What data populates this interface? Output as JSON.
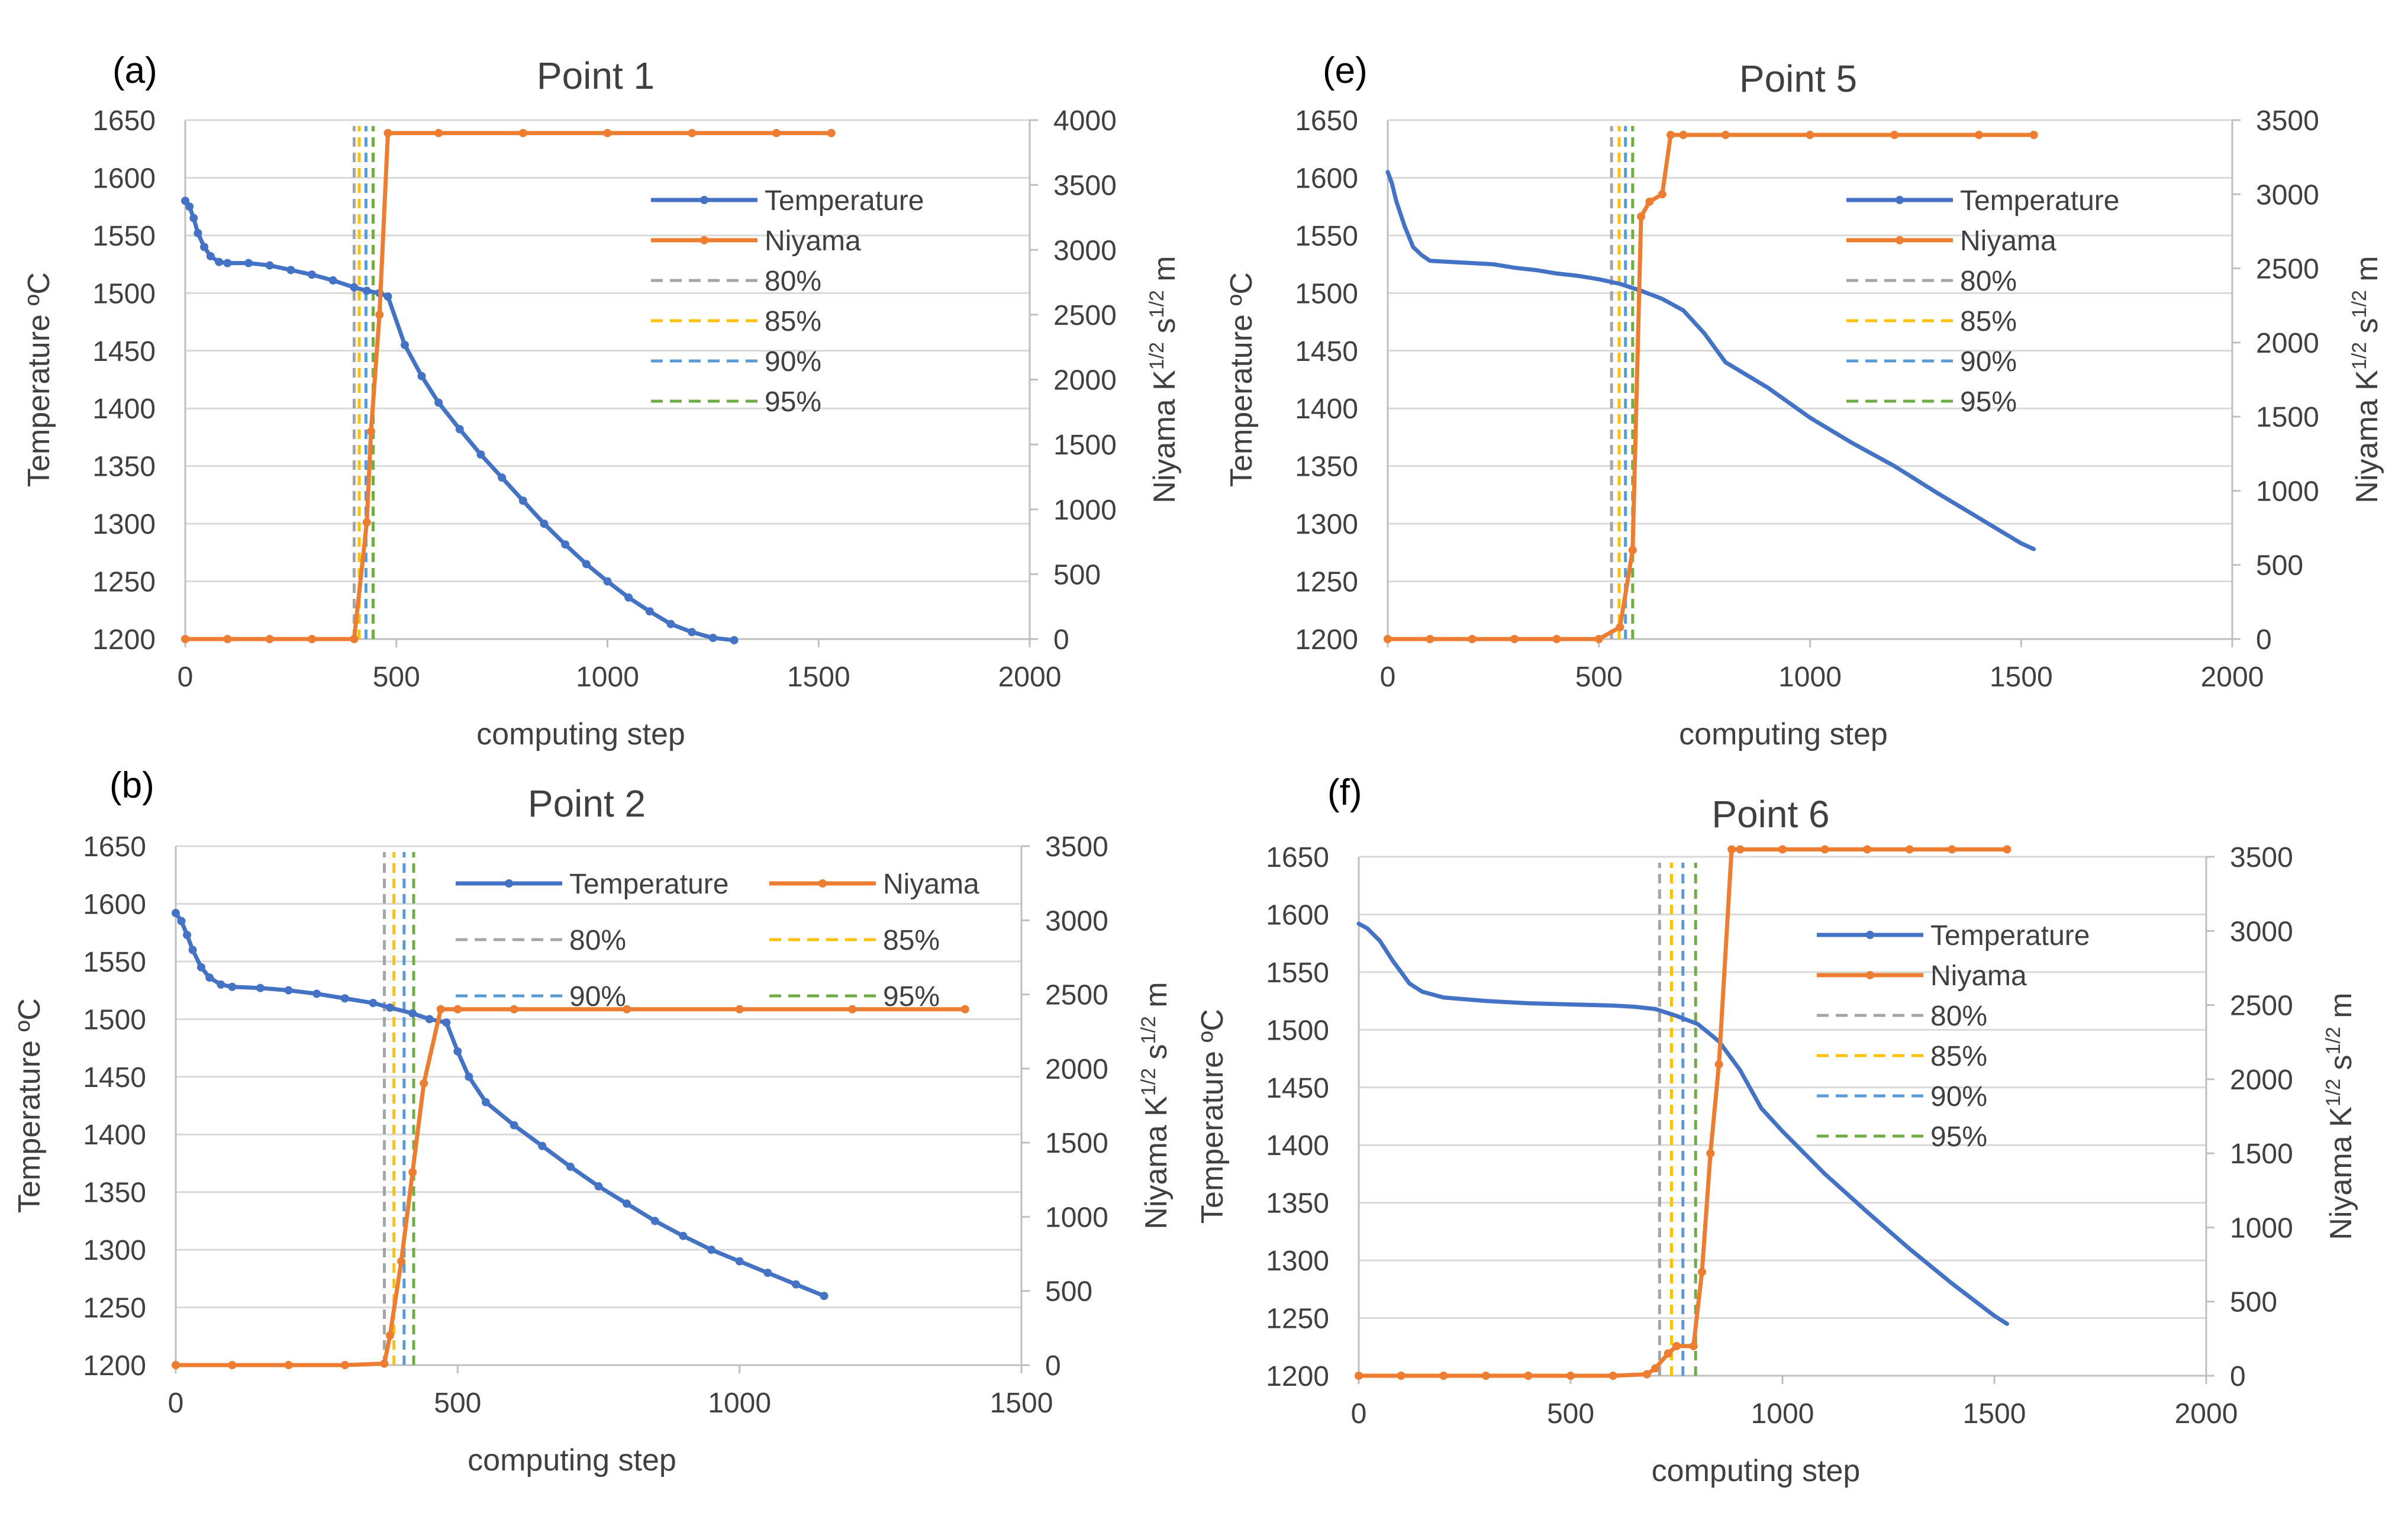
{
  "colors": {
    "temperature": "#4472C4",
    "niyama": "#ED7D31",
    "p80": "#A5A5A5",
    "p85": "#FFC000",
    "p90": "#5B9BD5",
    "p95": "#70AD47",
    "grid": "#D9D9D9",
    "axis": "#BFBFBF",
    "text": "#404040"
  },
  "chart_data": [
    {
      "panel_label": "(a)",
      "type": "line",
      "title": "Point 1",
      "xlabel": "computing step",
      "ylabel": "Temperature ºC",
      "y2label_main": "Niyama K",
      "y2label_sup1": "1/2",
      "y2label_mid": " s",
      "y2label_sup2": "1/2",
      "y2label_end": " m",
      "xlim": [
        0,
        2000
      ],
      "xticks": [
        0,
        500,
        1000,
        1500,
        2000
      ],
      "ylim": [
        1200,
        1650
      ],
      "yticks": [
        1200,
        1250,
        1300,
        1350,
        1400,
        1450,
        1500,
        1550,
        1600,
        1650
      ],
      "y2lim": [
        0,
        4000
      ],
      "y2ticks": [
        0,
        500,
        1000,
        1500,
        2000,
        2500,
        3000,
        3500,
        4000
      ],
      "legend_layout": "column",
      "legend": [
        "Temperature",
        "Niyama",
        "80%",
        "85%",
        "90%",
        "95%"
      ],
      "series": [
        {
          "name": "Temperature",
          "axis": "left",
          "markers": true,
          "x": [
            0,
            10,
            20,
            30,
            45,
            60,
            80,
            100,
            150,
            200,
            250,
            300,
            350,
            400,
            430,
            460,
            480,
            520,
            560,
            600,
            650,
            700,
            750,
            800,
            850,
            900,
            950,
            1000,
            1050,
            1100,
            1150,
            1200,
            1250,
            1300
          ],
          "y": [
            1580,
            1575,
            1565,
            1552,
            1540,
            1532,
            1527,
            1526,
            1526,
            1524,
            1520,
            1516,
            1511,
            1505,
            1502,
            1500,
            1497,
            1455,
            1428,
            1405,
            1382,
            1360,
            1340,
            1320,
            1300,
            1282,
            1265,
            1250,
            1236,
            1224,
            1213,
            1206,
            1201,
            1199
          ]
        },
        {
          "name": "Niyama",
          "axis": "right",
          "markers": true,
          "x": [
            0,
            100,
            200,
            300,
            400,
            430,
            440,
            460,
            480,
            600,
            800,
            1000,
            1200,
            1400,
            1530
          ],
          "y": [
            0,
            0,
            0,
            0,
            0,
            900,
            1600,
            2500,
            3900,
            3900,
            3900,
            3900,
            3900,
            3900,
            3900
          ]
        }
      ],
      "thresholds": [
        {
          "name": "80%",
          "x": 400
        },
        {
          "name": "85%",
          "x": 412
        },
        {
          "name": "90%",
          "x": 428
        },
        {
          "name": "95%",
          "x": 445
        }
      ]
    },
    {
      "panel_label": "(e)",
      "type": "line",
      "title": "Point 5",
      "xlabel": "computing step",
      "ylabel": "Temperature ºC",
      "y2label_main": "Niyama K",
      "y2label_sup1": "1/2",
      "y2label_mid": " s",
      "y2label_sup2": "1/2",
      "y2label_end": " m",
      "xlim": [
        0,
        2000
      ],
      "xticks": [
        0,
        500,
        1000,
        1500,
        2000
      ],
      "ylim": [
        1200,
        1650
      ],
      "yticks": [
        1200,
        1250,
        1300,
        1350,
        1400,
        1450,
        1500,
        1550,
        1600,
        1650
      ],
      "y2lim": [
        0,
        3500
      ],
      "y2ticks": [
        0,
        500,
        1000,
        1500,
        2000,
        2500,
        3000,
        3500
      ],
      "legend_layout": "column",
      "legend": [
        "Temperature",
        "Niyama",
        "80%",
        "85%",
        "90%",
        "95%"
      ],
      "series": [
        {
          "name": "Temperature",
          "axis": "left",
          "markers": false,
          "x": [
            0,
            10,
            20,
            40,
            60,
            80,
            100,
            150,
            200,
            250,
            300,
            350,
            400,
            450,
            500,
            550,
            600,
            650,
            700,
            750,
            800,
            900,
            1000,
            1100,
            1200,
            1300,
            1400,
            1500,
            1530
          ],
          "y": [
            1605,
            1595,
            1580,
            1558,
            1540,
            1533,
            1528,
            1527,
            1526,
            1525,
            1522,
            1520,
            1517,
            1515,
            1512,
            1508,
            1502,
            1495,
            1485,
            1465,
            1440,
            1418,
            1392,
            1370,
            1350,
            1327,
            1305,
            1283,
            1278
          ]
        },
        {
          "name": "Niyama",
          "axis": "right",
          "markers": true,
          "x": [
            0,
            100,
            200,
            300,
            400,
            500,
            550,
            580,
            600,
            620,
            650,
            670,
            700,
            800,
            1000,
            1200,
            1400,
            1530
          ],
          "y": [
            0,
            0,
            0,
            0,
            0,
            0,
            80,
            600,
            2850,
            2950,
            3000,
            3400,
            3400,
            3400,
            3400,
            3400,
            3400,
            3400
          ]
        }
      ],
      "thresholds": [
        {
          "name": "80%",
          "x": 530
        },
        {
          "name": "85%",
          "x": 548
        },
        {
          "name": "90%",
          "x": 563
        },
        {
          "name": "95%",
          "x": 580
        }
      ]
    },
    {
      "panel_label": "(b)",
      "type": "line",
      "title": "Point 2",
      "xlabel": "computing step",
      "ylabel": "Temperature ºC",
      "y2label_main": "Niyama K",
      "y2label_sup1": "1/2",
      "y2label_mid": " s",
      "y2label_sup2": "1/2",
      "y2label_end": " m",
      "xlim": [
        0,
        1500
      ],
      "xticks": [
        0,
        500,
        1000,
        1500
      ],
      "ylim": [
        1200,
        1650
      ],
      "yticks": [
        1200,
        1250,
        1300,
        1350,
        1400,
        1450,
        1500,
        1550,
        1600,
        1650
      ],
      "y2lim": [
        0,
        3500
      ],
      "y2ticks": [
        0,
        500,
        1000,
        1500,
        2000,
        2500,
        3000,
        3500
      ],
      "legend_layout": "grid",
      "legend": [
        "Temperature",
        "Niyama",
        "80%",
        "85%",
        "90%",
        "95%"
      ],
      "series": [
        {
          "name": "Temperature",
          "axis": "left",
          "markers": true,
          "x": [
            0,
            10,
            20,
            30,
            45,
            60,
            80,
            100,
            150,
            200,
            250,
            300,
            350,
            380,
            420,
            450,
            480,
            500,
            520,
            550,
            600,
            650,
            700,
            750,
            800,
            850,
            900,
            950,
            1000,
            1050,
            1100,
            1150
          ],
          "y": [
            1592,
            1585,
            1573,
            1560,
            1545,
            1536,
            1530,
            1528,
            1527,
            1525,
            1522,
            1518,
            1514,
            1510,
            1505,
            1500,
            1497,
            1472,
            1450,
            1428,
            1408,
            1390,
            1372,
            1355,
            1340,
            1325,
            1312,
            1300,
            1290,
            1280,
            1270,
            1260
          ]
        },
        {
          "name": "Niyama",
          "axis": "right",
          "markers": true,
          "x": [
            0,
            100,
            200,
            300,
            370,
            380,
            400,
            420,
            440,
            470,
            500,
            600,
            800,
            1000,
            1200,
            1400
          ],
          "y": [
            0,
            0,
            0,
            0,
            10,
            200,
            700,
            1300,
            1900,
            2400,
            2400,
            2400,
            2400,
            2400,
            2400,
            2400
          ]
        }
      ],
      "thresholds": [
        {
          "name": "80%",
          "x": 370
        },
        {
          "name": "85%",
          "x": 387
        },
        {
          "name": "90%",
          "x": 405
        },
        {
          "name": "95%",
          "x": 422
        }
      ]
    },
    {
      "panel_label": "(f)",
      "type": "line",
      "title": "Point 6",
      "xlabel": "computing step",
      "ylabel": "Temperature ºC",
      "y2label_main": "Niyama K",
      "y2label_sup1": "1/2",
      "y2label_mid": " s",
      "y2label_sup2": "1/2",
      "y2label_end": " m",
      "xlim": [
        0,
        2000
      ],
      "xticks": [
        0,
        500,
        1000,
        1500,
        2000
      ],
      "ylim": [
        1200,
        1650
      ],
      "yticks": [
        1200,
        1250,
        1300,
        1350,
        1400,
        1450,
        1500,
        1550,
        1600,
        1650
      ],
      "y2lim": [
        0,
        3500
      ],
      "y2ticks": [
        0,
        500,
        1000,
        1500,
        2000,
        2500,
        3000,
        3500
      ],
      "legend_layout": "column",
      "legend": [
        "Temperature",
        "Niyama",
        "80%",
        "85%",
        "90%",
        "95%"
      ],
      "series": [
        {
          "name": "Temperature",
          "axis": "left",
          "markers": false,
          "x": [
            0,
            20,
            50,
            80,
            120,
            150,
            200,
            300,
            400,
            500,
            600,
            650,
            700,
            750,
            800,
            850,
            900,
            950,
            1000,
            1100,
            1200,
            1300,
            1400,
            1500,
            1530
          ],
          "y": [
            1592,
            1588,
            1577,
            1560,
            1540,
            1533,
            1528,
            1525,
            1523,
            1522,
            1521,
            1520,
            1518,
            1512,
            1505,
            1490,
            1465,
            1432,
            1412,
            1375,
            1342,
            1310,
            1280,
            1252,
            1245
          ]
        },
        {
          "name": "Niyama",
          "axis": "right",
          "markers": true,
          "x": [
            0,
            100,
            200,
            300,
            400,
            500,
            600,
            680,
            700,
            730,
            750,
            790,
            810,
            830,
            850,
            880,
            900,
            1000,
            1100,
            1200,
            1300,
            1400,
            1530
          ],
          "y": [
            0,
            0,
            0,
            0,
            0,
            0,
            0,
            10,
            50,
            150,
            200,
            200,
            700,
            1500,
            2100,
            3550,
            3550,
            3550,
            3550,
            3550,
            3550,
            3550,
            3550
          ]
        }
      ],
      "thresholds": [
        {
          "name": "80%",
          "x": 710
        },
        {
          "name": "85%",
          "x": 738
        },
        {
          "name": "90%",
          "x": 765
        },
        {
          "name": "95%",
          "x": 795
        }
      ]
    }
  ]
}
